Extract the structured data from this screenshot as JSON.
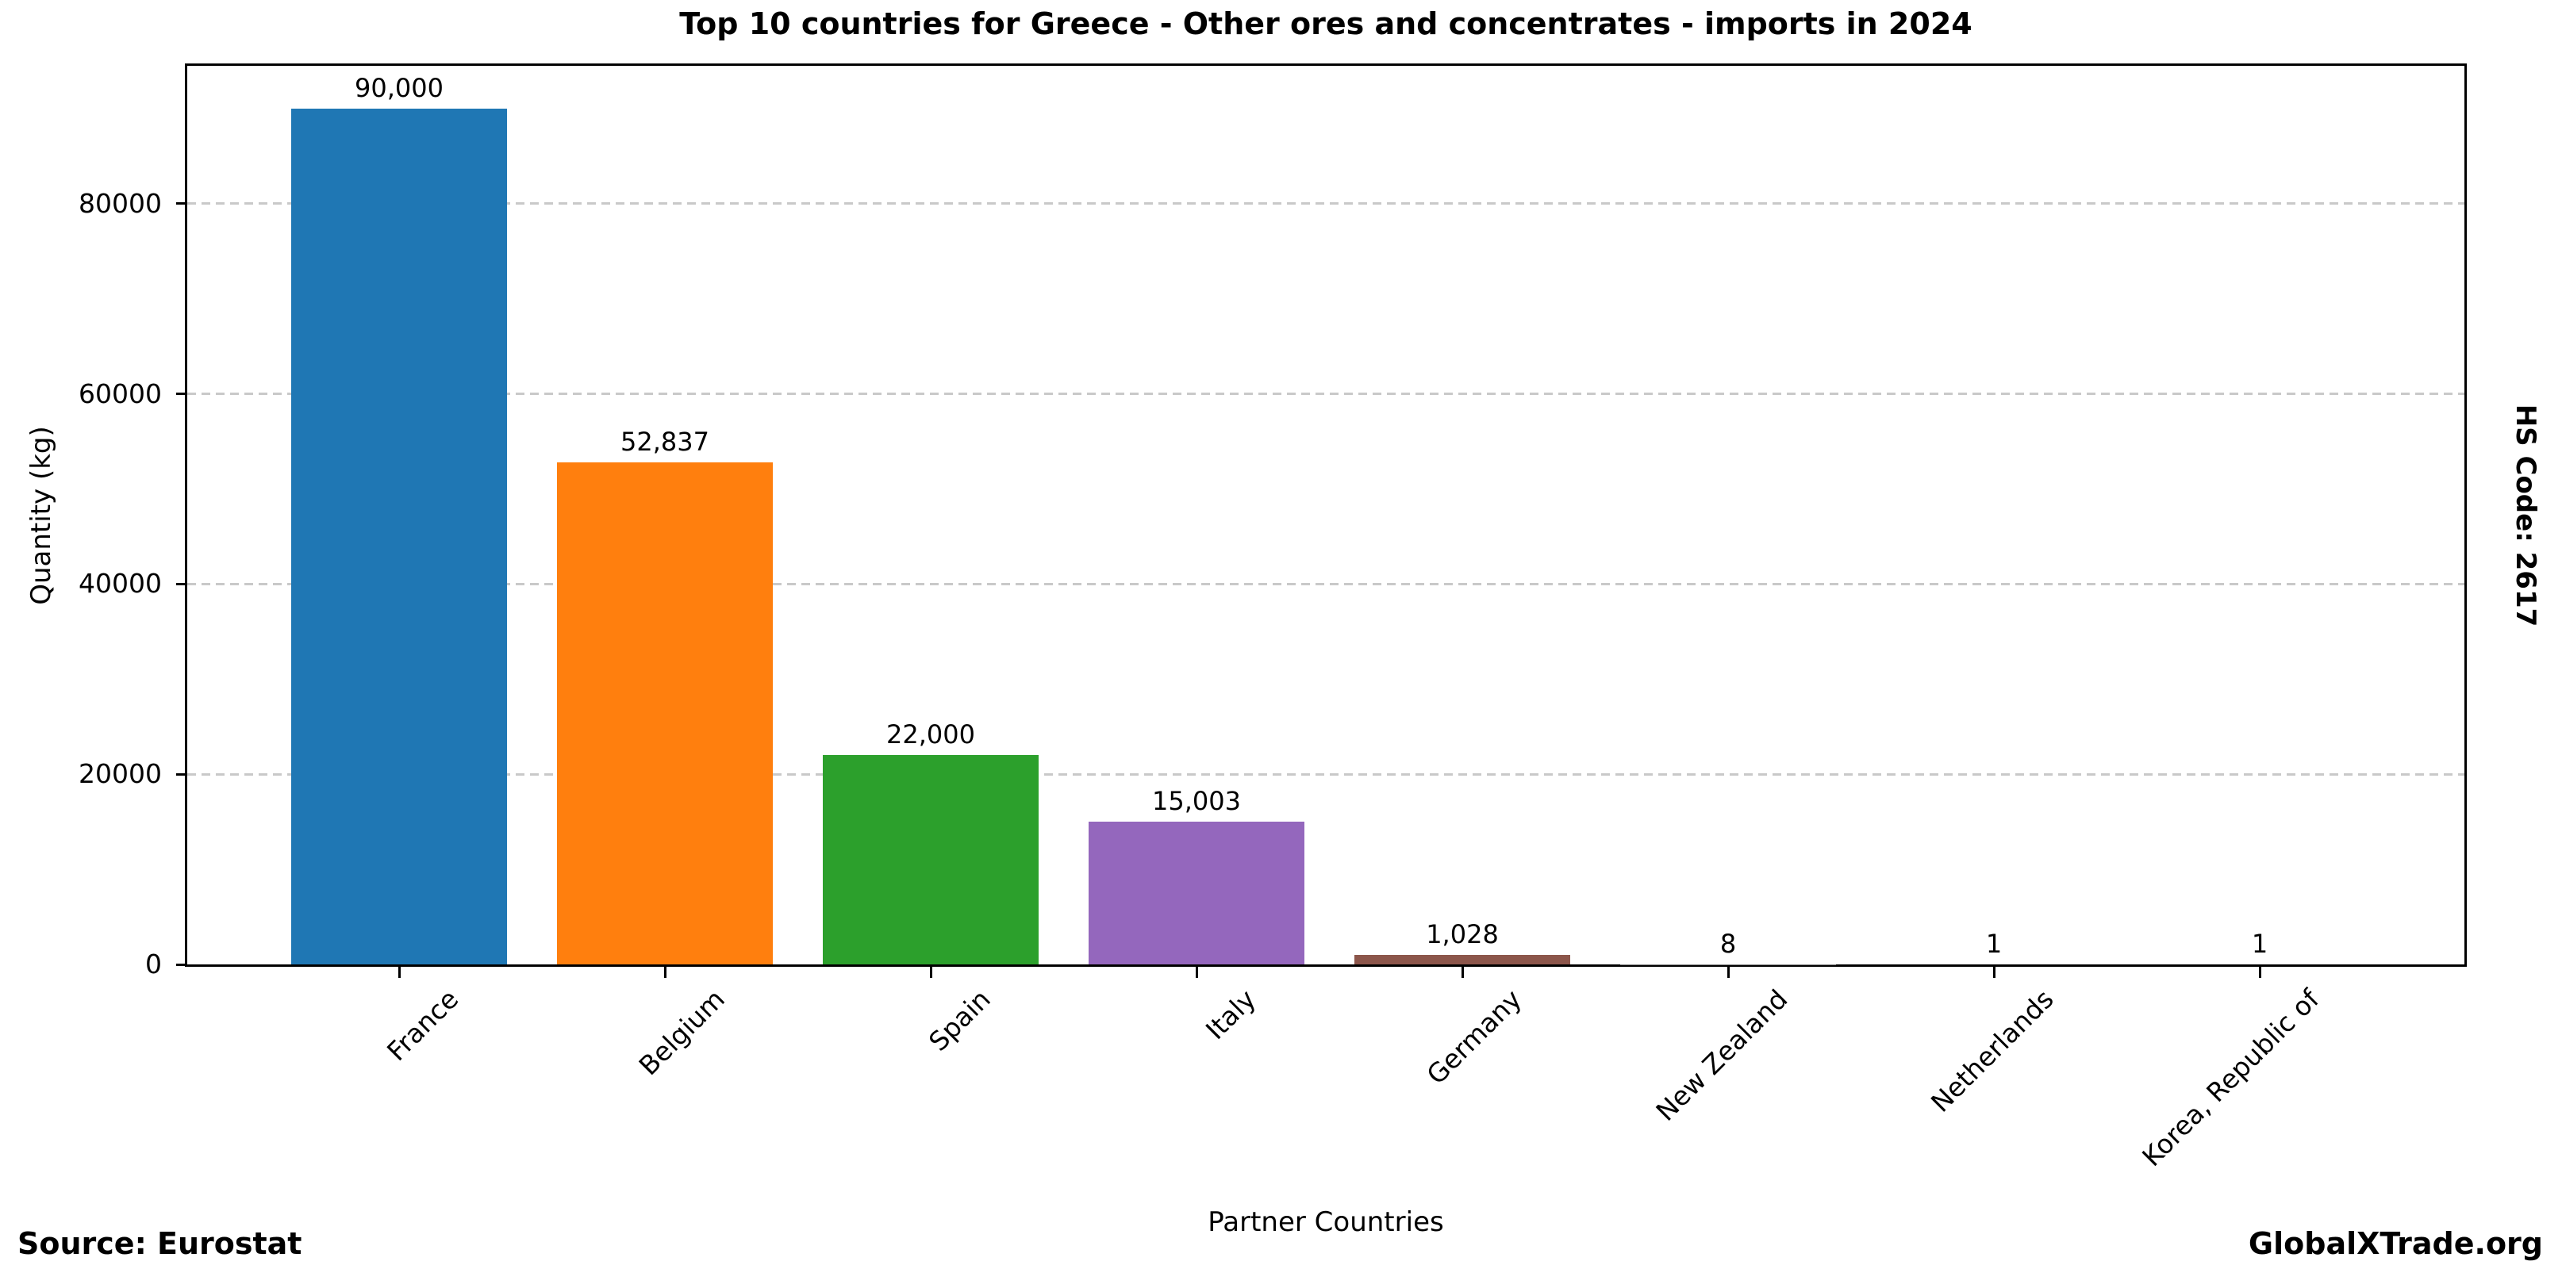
{
  "chart_data": {
    "type": "bar",
    "title": "Top 10 countries for Greece - Other ores and concentrates - imports in 2024",
    "xlabel": "Partner Countries",
    "ylabel": "Quantity (kg)",
    "categories": [
      "France",
      "Belgium",
      "Spain",
      "Italy",
      "Germany",
      "New Zealand",
      "Netherlands",
      "Korea, Republic of"
    ],
    "values": [
      90000,
      52837,
      22000,
      15003,
      1028,
      8,
      1,
      1
    ],
    "value_labels": [
      "90,000",
      "52,837",
      "22,000",
      "15,003",
      "1,028",
      "8",
      "1",
      "1"
    ],
    "bar_colors": [
      "#1f77b4",
      "#ff7f0e",
      "#2ca02c",
      "#9467bd",
      "#8c564b",
      "#7f7f7f",
      "#7f7f7f",
      "#7f7f7f"
    ],
    "ylim": [
      0,
      94500
    ],
    "yticks": [
      0,
      20000,
      40000,
      60000,
      80000
    ],
    "ytick_labels": [
      "0",
      "20000",
      "40000",
      "60000",
      "80000"
    ],
    "grid": "horizontal-dashed",
    "grid_color": "#c9c9c9",
    "legend": "none",
    "xtick_rotation_deg": 45
  },
  "annotations": {
    "hs_code": "HS Code: 2617",
    "source": "Source: Eurostat",
    "brand": "GlobalXTrade.org"
  }
}
